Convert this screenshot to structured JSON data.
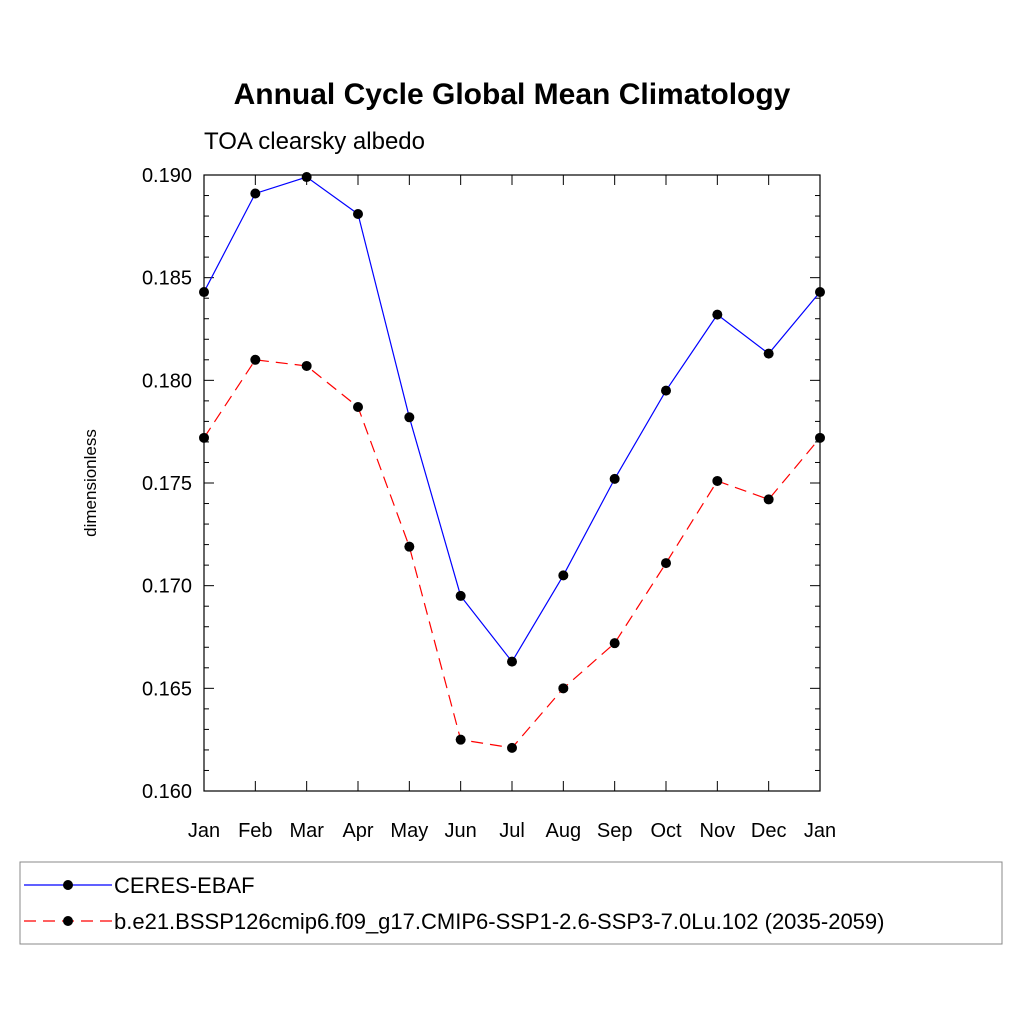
{
  "chart_data": {
    "type": "line",
    "title": "Annual Cycle Global Mean Climatology",
    "subtitle": "TOA clearsky albedo",
    "xlabel": "",
    "ylabel": "dimensionless",
    "categories": [
      "Jan",
      "Feb",
      "Mar",
      "Apr",
      "May",
      "Jun",
      "Jul",
      "Aug",
      "Sep",
      "Oct",
      "Nov",
      "Dec",
      "Jan"
    ],
    "ylim": [
      0.16,
      0.19
    ],
    "yticks": [
      "0.160",
      "0.165",
      "0.170",
      "0.175",
      "0.180",
      "0.185",
      "0.190"
    ],
    "grid": false,
    "legend_position": "bottom",
    "series": [
      {
        "name": "CERES-EBAF",
        "color": "#0000ff",
        "dash": "solid",
        "values": [
          0.1843,
          0.1891,
          0.1899,
          0.1881,
          0.1782,
          0.1695,
          0.1663,
          0.1705,
          0.1752,
          0.1795,
          0.1832,
          0.1813,
          0.1843
        ]
      },
      {
        "name": "b.e21.BSSP126cmip6.f09_g17.CMIP6-SSP1-2.6-SSP3-7.0Lu.102 (2035-2059)",
        "color": "#ff0000",
        "dash": "dashed",
        "values": [
          0.1772,
          0.181,
          0.1807,
          0.1787,
          0.1719,
          0.1625,
          0.1621,
          0.165,
          0.1672,
          0.1711,
          0.1751,
          0.1742,
          0.1772
        ]
      }
    ]
  }
}
